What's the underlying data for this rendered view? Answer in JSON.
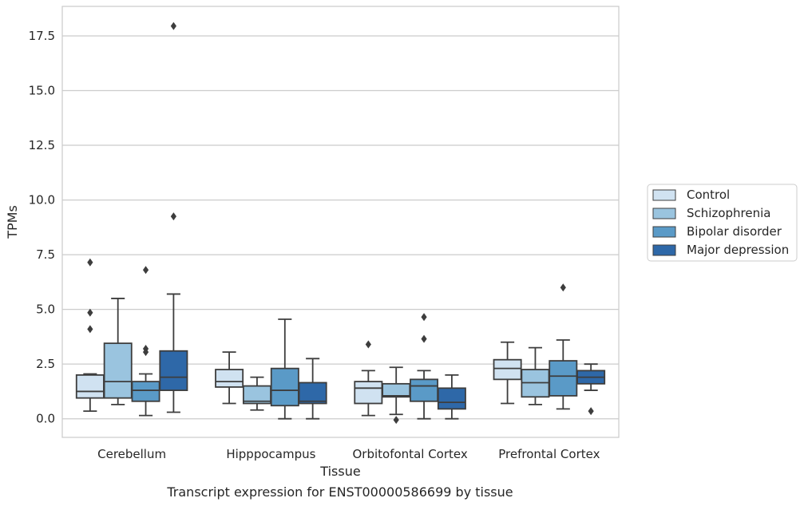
{
  "chart_data": {
    "type": "boxplot",
    "caption": "Transcript expression for ENST00000586699 by tissue",
    "xlabel": "Tissue",
    "ylabel": "TPMs",
    "ylim": [
      -0.85,
      18.85
    ],
    "yticks": [
      "0.0",
      "2.5",
      "5.0",
      "7.5",
      "10.0",
      "12.5",
      "15.0",
      "17.5"
    ],
    "grid": "horizontal",
    "legend_position": "right",
    "categories": [
      "Cerebellum",
      "Hipppocampus",
      "Orbitofontal Cortex",
      "Prefrontal Cortex"
    ],
    "series": [
      {
        "name": "Control",
        "color": "#d0e2f1",
        "boxes": [
          {
            "whislo": 0.35,
            "q1": 0.95,
            "med": 1.25,
            "q3": 2.0,
            "whishi": 2.05,
            "fliers": [
              7.15,
              4.85,
              4.1
            ]
          },
          {
            "whislo": 0.7,
            "q1": 1.45,
            "med": 1.7,
            "q3": 2.25,
            "whishi": 3.05,
            "fliers": []
          },
          {
            "whislo": 0.15,
            "q1": 0.7,
            "med": 1.4,
            "q3": 1.7,
            "whishi": 2.2,
            "fliers": [
              3.4
            ]
          },
          {
            "whislo": 0.7,
            "q1": 1.8,
            "med": 2.3,
            "q3": 2.7,
            "whishi": 3.5,
            "fliers": []
          }
        ]
      },
      {
        "name": "Schizophrenia",
        "color": "#9ac4df",
        "boxes": [
          {
            "whislo": 0.65,
            "q1": 0.95,
            "med": 1.7,
            "q3": 3.45,
            "whishi": 5.5,
            "fliers": []
          },
          {
            "whislo": 0.4,
            "q1": 0.7,
            "med": 0.8,
            "q3": 1.5,
            "whishi": 1.9,
            "fliers": []
          },
          {
            "whislo": 0.2,
            "q1": 1.0,
            "med": 1.05,
            "q3": 1.6,
            "whishi": 2.35,
            "fliers": [
              -0.05
            ]
          },
          {
            "whislo": 0.65,
            "q1": 1.0,
            "med": 1.65,
            "q3": 2.25,
            "whishi": 3.25,
            "fliers": []
          }
        ]
      },
      {
        "name": "Bipolar disorder",
        "color": "#5a9ac7",
        "boxes": [
          {
            "whislo": 0.15,
            "q1": 0.8,
            "med": 1.3,
            "q3": 1.7,
            "whishi": 2.05,
            "fliers": [
              6.8,
              3.2,
              3.05
            ]
          },
          {
            "whislo": 0.0,
            "q1": 0.6,
            "med": 1.3,
            "q3": 2.3,
            "whishi": 4.55,
            "fliers": []
          },
          {
            "whislo": 0.0,
            "q1": 0.8,
            "med": 1.5,
            "q3": 1.8,
            "whishi": 2.2,
            "fliers": [
              4.65,
              3.65
            ]
          },
          {
            "whislo": 0.45,
            "q1": 1.05,
            "med": 1.95,
            "q3": 2.65,
            "whishi": 3.6,
            "fliers": [
              6.0
            ]
          }
        ]
      },
      {
        "name": "Major depression",
        "color": "#2e68a8",
        "boxes": [
          {
            "whislo": 0.3,
            "q1": 1.3,
            "med": 1.9,
            "q3": 3.1,
            "whishi": 5.7,
            "fliers": [
              17.95,
              9.25
            ]
          },
          {
            "whislo": 0.0,
            "q1": 0.7,
            "med": 0.8,
            "q3": 1.65,
            "whishi": 2.75,
            "fliers": []
          },
          {
            "whislo": 0.0,
            "q1": 0.45,
            "med": 0.75,
            "q3": 1.4,
            "whishi": 2.0,
            "fliers": []
          },
          {
            "whislo": 1.3,
            "q1": 1.6,
            "med": 1.9,
            "q3": 2.2,
            "whishi": 2.5,
            "fliers": [
              0.35
            ]
          }
        ]
      }
    ]
  }
}
